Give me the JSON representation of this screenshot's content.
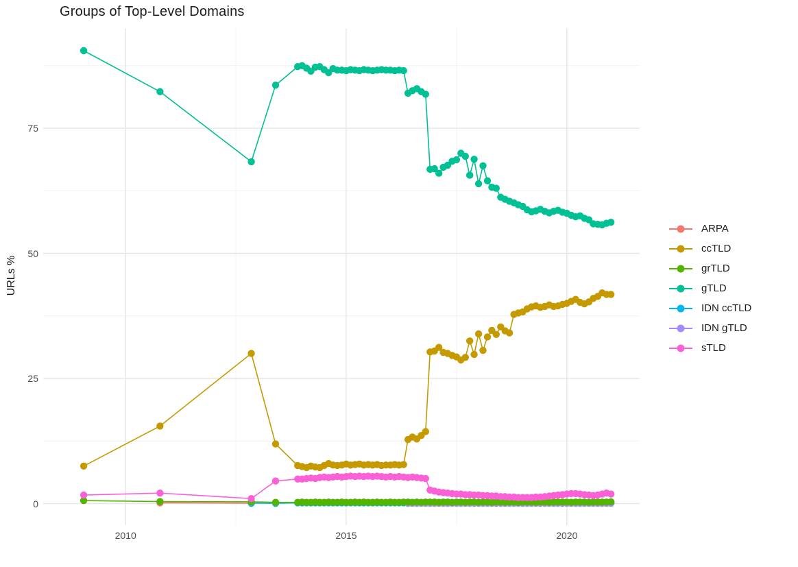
{
  "chart_data": {
    "type": "line",
    "title": "Groups of Top-Level Domains",
    "xlabel": "",
    "ylabel": "URLs %",
    "xlim": [
      2008.13,
      2021.65
    ],
    "ylim": [
      -4.5,
      95
    ],
    "grid": {
      "on": true,
      "x_major": [
        2010,
        2015,
        2020
      ],
      "x_minor": [
        2012.5,
        2017.5
      ],
      "y_major": [
        0,
        25,
        50,
        75
      ],
      "y_minor": [
        12.5,
        37.5,
        62.5,
        87.5
      ]
    },
    "x_ticks": [
      {
        "value": 2010,
        "label": "2010"
      },
      {
        "value": 2015,
        "label": "2015"
      },
      {
        "value": 2020,
        "label": "2020"
      }
    ],
    "y_ticks": [
      {
        "value": 0,
        "label": "0"
      },
      {
        "value": 25,
        "label": "25"
      },
      {
        "value": 50,
        "label": "50"
      },
      {
        "value": 75,
        "label": "75"
      }
    ],
    "legend_position": "right",
    "draw_order": [
      0,
      4,
      5,
      1,
      2,
      3,
      6
    ],
    "x": [
      2009.05,
      2010.78,
      2012.85,
      2013.4,
      2013.9,
      2014.0,
      2014.1,
      2014.2,
      2014.3,
      2014.4,
      2014.5,
      2014.6,
      2014.7,
      2014.8,
      2014.9,
      2015.0,
      2015.1,
      2015.2,
      2015.3,
      2015.4,
      2015.5,
      2015.6,
      2015.7,
      2015.8,
      2015.9,
      2016.0,
      2016.1,
      2016.2,
      2016.3,
      2016.4,
      2016.5,
      2016.6,
      2016.7,
      2016.8,
      2016.9,
      2017.0,
      2017.1,
      2017.2,
      2017.3,
      2017.4,
      2017.5,
      2017.6,
      2017.7,
      2017.8,
      2017.9,
      2018.0,
      2018.1,
      2018.2,
      2018.3,
      2018.4,
      2018.5,
      2018.6,
      2018.7,
      2018.8,
      2018.9,
      2019.0,
      2019.1,
      2019.2,
      2019.3,
      2019.4,
      2019.5,
      2019.6,
      2019.7,
      2019.8,
      2019.9,
      2020.0,
      2020.1,
      2020.2,
      2020.3,
      2020.4,
      2020.5,
      2020.6,
      2020.7,
      2020.8,
      2020.9,
      2021.0
    ],
    "series": [
      {
        "name": "ARPA",
        "color": "#F8766D",
        "values": [
          null,
          0.15,
          0.08,
          null,
          null,
          null,
          null,
          null,
          null,
          null,
          null,
          null,
          null,
          null,
          null,
          null,
          null,
          null,
          null,
          null,
          null,
          null,
          null,
          null,
          null,
          null,
          null,
          null,
          null,
          null,
          null,
          null,
          null,
          null,
          null,
          null,
          null,
          null,
          null,
          null,
          null,
          null,
          null,
          null,
          null,
          null,
          null,
          null,
          null,
          null,
          null,
          null,
          null,
          null,
          null,
          null,
          null,
          null,
          null,
          null,
          null,
          null,
          null,
          null,
          null,
          null,
          null,
          null,
          null,
          null,
          null,
          null,
          null,
          null,
          null,
          null
        ]
      },
      {
        "name": "ccTLD",
        "color": "#C49A00",
        "values": [
          7.5,
          15.5,
          30.0,
          11.9,
          7.6,
          7.4,
          7.2,
          7.5,
          7.3,
          7.2,
          7.6,
          8.0,
          7.7,
          7.6,
          7.7,
          7.9,
          7.7,
          7.8,
          7.9,
          7.7,
          7.8,
          7.7,
          7.8,
          7.6,
          7.7,
          7.7,
          7.8,
          7.7,
          7.8,
          12.8,
          13.3,
          12.9,
          13.6,
          14.4,
          30.3,
          30.5,
          31.2,
          30.2,
          30.0,
          29.6,
          29.3,
          28.7,
          29.2,
          32.5,
          29.8,
          33.9,
          30.6,
          33.3,
          34.6,
          33.8,
          35.3,
          34.5,
          34.1,
          37.8,
          38.1,
          38.3,
          38.9,
          39.3,
          39.5,
          39.2,
          39.4,
          39.7,
          39.4,
          39.5,
          39.8,
          40.0,
          40.4,
          40.8,
          40.2,
          39.9,
          40.3,
          41.0,
          41.4,
          42.1,
          41.8,
          41.8
        ]
      },
      {
        "name": "grTLD",
        "color": "#53B400",
        "values": [
          0.6,
          0.4,
          0.35,
          0.25,
          0.25,
          0.3,
          0.25,
          0.25,
          0.3,
          0.25,
          0.25,
          0.3,
          0.25,
          0.25,
          0.3,
          0.25,
          0.25,
          0.3,
          0.25,
          0.3,
          0.25,
          0.25,
          0.3,
          0.25,
          0.25,
          0.3,
          0.25,
          0.25,
          0.3,
          0.3,
          0.25,
          0.3,
          0.25,
          0.3,
          0.3,
          0.3,
          0.25,
          0.3,
          0.3,
          0.25,
          0.3,
          0.3,
          0.25,
          0.3,
          0.3,
          0.25,
          0.3,
          0.3,
          0.25,
          0.3,
          0.3,
          0.25,
          0.3,
          0.3,
          0.25,
          0.3,
          0.3,
          0.3,
          0.25,
          0.3,
          0.3,
          0.25,
          0.3,
          0.3,
          0.3,
          0.3,
          0.25,
          0.3,
          0.3,
          0.3,
          0.25,
          0.3,
          0.3,
          0.3,
          0.3,
          0.35
        ]
      },
      {
        "name": "gTLD",
        "color": "#00C094",
        "values": [
          90.5,
          82.3,
          68.3,
          83.6,
          87.3,
          87.5,
          87.0,
          86.4,
          87.2,
          87.3,
          86.7,
          86.1,
          86.9,
          86.6,
          86.6,
          86.5,
          86.7,
          86.6,
          86.5,
          86.7,
          86.6,
          86.5,
          86.6,
          86.7,
          86.6,
          86.6,
          86.5,
          86.6,
          86.5,
          82.0,
          82.5,
          82.9,
          82.3,
          81.8,
          66.8,
          66.9,
          66.0,
          67.2,
          67.6,
          68.4,
          68.7,
          70.0,
          69.4,
          65.6,
          68.8,
          63.9,
          67.5,
          64.5,
          63.2,
          63.0,
          61.2,
          60.8,
          60.4,
          60.1,
          59.7,
          59.4,
          58.7,
          58.3,
          58.5,
          58.8,
          58.4,
          58.1,
          58.4,
          58.6,
          58.2,
          58.0,
          57.6,
          57.3,
          57.5,
          57.0,
          56.7,
          55.9,
          55.8,
          55.7,
          56.0,
          56.2
        ]
      },
      {
        "name": "IDN ccTLD",
        "color": "#00B6EB",
        "values": [
          null,
          null,
          0.1,
          0.05,
          0.15,
          0.15,
          0.15,
          0.15,
          0.15,
          0.15,
          0.15,
          0.15,
          0.15,
          0.15,
          0.15,
          0.15,
          0.15,
          0.15,
          0.15,
          0.15,
          0.15,
          0.15,
          0.15,
          0.15,
          0.15,
          0.15,
          0.15,
          0.15,
          0.15,
          0.15,
          0.2,
          0.2,
          0.2,
          0.2,
          0.2,
          0.2,
          0.2,
          0.2,
          0.2,
          0.2,
          0.2,
          0.2,
          0.2,
          0.2,
          0.2,
          0.2,
          0.2,
          0.2,
          0.2,
          0.2,
          0.2,
          0.2,
          0.2,
          0.2,
          0.2,
          0.2,
          0.2,
          0.2,
          0.2,
          0.2,
          0.2,
          0.2,
          0.2,
          0.2,
          0.2,
          0.2,
          0.2,
          0.2,
          0.2,
          0.2,
          0.2,
          0.2,
          0.2,
          0.2,
          0.2,
          0.2
        ]
      },
      {
        "name": "IDN gTLD",
        "color": "#A58AFF",
        "values": [
          null,
          null,
          null,
          null,
          null,
          null,
          null,
          null,
          null,
          null,
          null,
          null,
          null,
          null,
          null,
          null,
          null,
          null,
          null,
          null,
          null,
          null,
          null,
          null,
          null,
          null,
          null,
          null,
          null,
          0.05,
          0.05,
          0.05,
          0.05,
          0.05,
          0.05,
          0.05,
          0.05,
          0.05,
          0.05,
          0.05,
          0.05,
          0.05,
          0.05,
          0.05,
          0.05,
          0.05,
          0.05,
          0.05,
          0.05,
          0.05,
          0.05,
          0.05,
          0.05,
          0.05,
          0.05,
          0.05,
          0.05,
          0.05,
          0.05,
          0.05,
          0.05,
          0.05,
          0.05,
          0.05,
          0.05,
          0.05,
          0.05,
          0.05,
          0.05,
          0.05,
          0.05,
          0.05,
          0.05,
          0.05,
          0.05,
          0.05
        ]
      },
      {
        "name": "sTLD",
        "color": "#FB61D7",
        "values": [
          1.7,
          2.1,
          1.0,
          4.5,
          4.9,
          4.9,
          5.0,
          5.1,
          5.0,
          5.2,
          5.3,
          5.2,
          5.3,
          5.4,
          5.3,
          5.4,
          5.5,
          5.4,
          5.5,
          5.4,
          5.5,
          5.4,
          5.5,
          5.4,
          5.3,
          5.4,
          5.3,
          5.4,
          5.3,
          5.2,
          5.3,
          5.2,
          5.1,
          5.0,
          2.7,
          2.5,
          2.3,
          2.2,
          2.1,
          2.0,
          1.9,
          1.9,
          1.8,
          1.8,
          1.7,
          1.7,
          1.6,
          1.6,
          1.5,
          1.5,
          1.4,
          1.4,
          1.3,
          1.3,
          1.2,
          1.2,
          1.2,
          1.2,
          1.3,
          1.3,
          1.4,
          1.5,
          1.6,
          1.7,
          1.8,
          1.9,
          2.0,
          2.0,
          1.9,
          1.8,
          1.7,
          1.6,
          1.7,
          1.9,
          2.1,
          1.9
        ]
      }
    ]
  },
  "style": {
    "grid_major_color": "#E6E6E6",
    "grid_minor_color": "#F1F1F1",
    "background": "#FFFFFF",
    "tick_label_color": "#4d4d4d",
    "text_color": "#1c1c1c"
  }
}
